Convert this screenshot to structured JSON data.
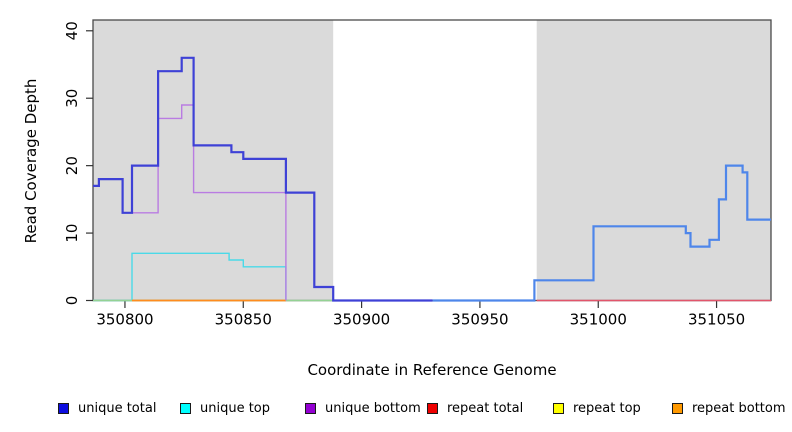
{
  "figure": {
    "xlabel": "Coordinate in Reference Genome",
    "ylabel": "Read Coverage Depth"
  },
  "legend": {
    "items": [
      {
        "label": "unique total",
        "color": "#0d0de0"
      },
      {
        "label": "unique top",
        "color": "#00ffff"
      },
      {
        "label": "unique bottom",
        "color": "#9400d3"
      },
      {
        "label": "repeat total",
        "color": "#ee0000"
      },
      {
        "label": "repeat top",
        "color": "#ffff00"
      },
      {
        "label": "repeat bottom",
        "color": "#ff9900"
      }
    ]
  },
  "colors": {
    "shade": "#dadada",
    "box": "#4a4a4a",
    "tick": "#333333",
    "text": "#000000",
    "plot_bg": "#ffffff"
  },
  "chart_data": {
    "type": "line",
    "step": "after",
    "title": "",
    "xlabel": "Coordinate in Reference Genome",
    "ylabel": "Read Coverage Depth",
    "xlim": [
      350786.5,
      351073
    ],
    "ylim": [
      0,
      41.6
    ],
    "x_ticks": [
      350800,
      350850,
      350900,
      350950,
      351000,
      351050
    ],
    "y_ticks": [
      0,
      10,
      20,
      30,
      40
    ],
    "grid": false,
    "legend_position": "bottom",
    "shaded_regions": [
      {
        "name": "repeat-region-left",
        "x0": 350786.5,
        "x1": 350888
      },
      {
        "name": "repeat-region-right",
        "x0": 350974,
        "x1": 351073
      }
    ],
    "series": [
      {
        "name": "unique top",
        "segments": [
          {
            "stroke": "#4ad9e8",
            "width": 1.4,
            "end_x": 350868,
            "points": [
              [
                350786.5,
                0
              ],
              [
                350803,
                7
              ],
              [
                350844,
                6
              ],
              [
                350850,
                5
              ],
              [
                350868,
                0
              ]
            ]
          }
        ]
      },
      {
        "name": "repeat top",
        "note": "depth 0 across shown span; overlap with other zero lines renders pale green",
        "segments": [
          {
            "stroke": "#94d294",
            "width": 1.4,
            "end_x": 350888,
            "points": [
              [
                350786.5,
                0
              ]
            ]
          }
        ]
      },
      {
        "name": "repeat total",
        "segments": [
          {
            "stroke": "#e2556b",
            "width": 1.4,
            "end_x": 351073,
            "points": [
              [
                350974,
                0
              ]
            ]
          }
        ]
      },
      {
        "name": "repeat bottom",
        "segments": [
          {
            "stroke": "#ff8c1e",
            "width": 1.8,
            "end_x": 350868,
            "points": [
              [
                350803,
                0
              ]
            ]
          }
        ]
      },
      {
        "name": "unique bottom",
        "segments": [
          {
            "stroke": "#b97ce2",
            "width": 1.4,
            "end_x": 350868,
            "points": [
              [
                350799,
                13
              ],
              [
                350814,
                27
              ],
              [
                350824,
                29
              ],
              [
                350829,
                16
              ],
              [
                350868,
                0
              ]
            ]
          }
        ]
      },
      {
        "name": "unique total",
        "segments": [
          {
            "stroke": "#3e41d6",
            "width": 2.2,
            "end_x": 350930,
            "points": [
              [
                350786.5,
                17
              ],
              [
                350789,
                18
              ],
              [
                350799,
                13
              ],
              [
                350803,
                20
              ],
              [
                350814,
                34
              ],
              [
                350824,
                36
              ],
              [
                350829,
                23
              ],
              [
                350845,
                22
              ],
              [
                350850,
                21
              ],
              [
                350868,
                16
              ],
              [
                350880,
                2
              ],
              [
                350888,
                0
              ]
            ]
          },
          {
            "stroke": "#4e86ea",
            "width": 2.2,
            "end_x": 351073,
            "points": [
              [
                350930,
                0
              ],
              [
                350973,
                3
              ],
              [
                350998,
                11
              ],
              [
                351037,
                10
              ],
              [
                351039,
                8
              ],
              [
                351047,
                9
              ],
              [
                351051,
                15
              ],
              [
                351054,
                20
              ],
              [
                351061,
                19
              ],
              [
                351063,
                12
              ]
            ]
          }
        ]
      }
    ]
  }
}
